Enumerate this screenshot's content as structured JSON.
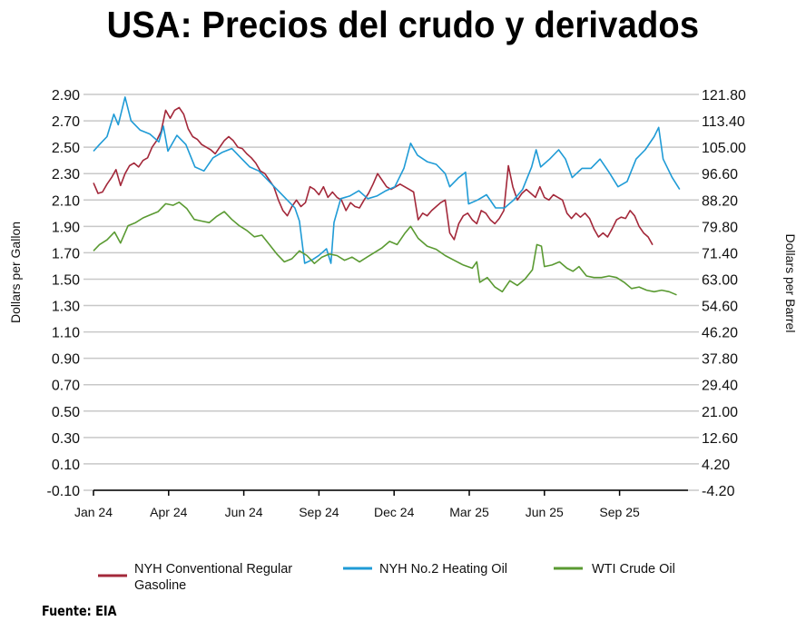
{
  "title": "USA: Precios del crudo y derivados",
  "source": "Fuente: EIA",
  "chart_data": {
    "type": "line",
    "title": "USA: Precios del crudo y derivados",
    "ylabel_left": "Dollars per Gallon",
    "ylabel_right": "Dollars per Barrel",
    "ylim_left": [
      -0.1,
      2.9
    ],
    "ylim_right": [
      -4.2,
      121.8
    ],
    "yticks_left": [
      "2.90",
      "2.70",
      "2.50",
      "2.30",
      "2.10",
      "1.90",
      "1.70",
      "1.50",
      "1.30",
      "1.10",
      "0.90",
      "0.70",
      "0.50",
      "0.30",
      "0.10",
      "-0.10"
    ],
    "yticks_right": [
      "121.80",
      "113.40",
      "105.00",
      "96.60",
      "88.20",
      "79.80",
      "71.40",
      "63.00",
      "54.60",
      "46.20",
      "37.80",
      "29.40",
      "21.00",
      "12.60",
      "4.20",
      "-4.20"
    ],
    "xticks": [
      "Jan 24",
      "Apr 24",
      "Jun 24",
      "Sep 24",
      "Dec 24",
      "Mar 25",
      "Jun 25",
      "Sep 25"
    ],
    "x_unit": "tick index (0 = Jan 24, 7 = Sep 25)",
    "xlim": [
      0,
      7.9
    ],
    "grid": true,
    "legend_position": "bottom",
    "series": [
      {
        "name": "NYH Conventional Regular Gasoline",
        "axis": "left",
        "color": "#a3283a",
        "points": [
          [
            0,
            2.23
          ],
          [
            0.06,
            2.15
          ],
          [
            0.12,
            2.16
          ],
          [
            0.18,
            2.22
          ],
          [
            0.24,
            2.27
          ],
          [
            0.3,
            2.33
          ],
          [
            0.36,
            2.21
          ],
          [
            0.42,
            2.3
          ],
          [
            0.48,
            2.36
          ],
          [
            0.54,
            2.38
          ],
          [
            0.6,
            2.35
          ],
          [
            0.66,
            2.4
          ],
          [
            0.72,
            2.42
          ],
          [
            0.78,
            2.5
          ],
          [
            0.84,
            2.55
          ],
          [
            0.9,
            2.62
          ],
          [
            0.96,
            2.78
          ],
          [
            1.02,
            2.72
          ],
          [
            1.08,
            2.78
          ],
          [
            1.14,
            2.8
          ],
          [
            1.2,
            2.75
          ],
          [
            1.26,
            2.64
          ],
          [
            1.32,
            2.58
          ],
          [
            1.38,
            2.56
          ],
          [
            1.44,
            2.52
          ],
          [
            1.5,
            2.5
          ],
          [
            1.56,
            2.48
          ],
          [
            1.62,
            2.45
          ],
          [
            1.68,
            2.5
          ],
          [
            1.74,
            2.55
          ],
          [
            1.8,
            2.58
          ],
          [
            1.86,
            2.55
          ],
          [
            1.92,
            2.5
          ],
          [
            1.98,
            2.49
          ],
          [
            2.04,
            2.45
          ],
          [
            2.1,
            2.42
          ],
          [
            2.16,
            2.38
          ],
          [
            2.22,
            2.32
          ],
          [
            2.28,
            2.3
          ],
          [
            2.34,
            2.25
          ],
          [
            2.4,
            2.2
          ],
          [
            2.46,
            2.1
          ],
          [
            2.52,
            2.02
          ],
          [
            2.58,
            1.98
          ],
          [
            2.64,
            2.05
          ],
          [
            2.7,
            2.1
          ],
          [
            2.76,
            2.05
          ],
          [
            2.82,
            2.08
          ],
          [
            2.88,
            2.2
          ],
          [
            2.94,
            2.18
          ],
          [
            3.0,
            2.14
          ],
          [
            3.06,
            2.2
          ],
          [
            3.12,
            2.12
          ],
          [
            3.18,
            2.16
          ],
          [
            3.24,
            2.12
          ],
          [
            3.3,
            2.1
          ],
          [
            3.36,
            2.02
          ],
          [
            3.42,
            2.08
          ],
          [
            3.48,
            2.05
          ],
          [
            3.54,
            2.04
          ],
          [
            3.6,
            2.1
          ],
          [
            3.66,
            2.15
          ],
          [
            3.72,
            2.22
          ],
          [
            3.78,
            2.3
          ],
          [
            3.84,
            2.25
          ],
          [
            3.9,
            2.2
          ],
          [
            3.96,
            2.18
          ],
          [
            4.02,
            2.2
          ],
          [
            4.08,
            2.22
          ],
          [
            4.14,
            2.2
          ],
          [
            4.2,
            2.18
          ],
          [
            4.26,
            2.16
          ],
          [
            4.32,
            1.95
          ],
          [
            4.38,
            2.0
          ],
          [
            4.44,
            1.98
          ],
          [
            4.5,
            2.02
          ],
          [
            4.56,
            2.05
          ],
          [
            4.62,
            2.08
          ],
          [
            4.68,
            2.1
          ],
          [
            4.74,
            1.85
          ],
          [
            4.8,
            1.8
          ],
          [
            4.86,
            1.92
          ],
          [
            4.92,
            1.98
          ],
          [
            4.98,
            2.0
          ],
          [
            5.04,
            1.95
          ],
          [
            5.1,
            1.92
          ],
          [
            5.16,
            2.02
          ],
          [
            5.22,
            2.0
          ],
          [
            5.28,
            1.95
          ],
          [
            5.34,
            1.92
          ],
          [
            5.4,
            1.96
          ],
          [
            5.46,
            2.02
          ],
          [
            5.52,
            2.36
          ],
          [
            5.58,
            2.2
          ],
          [
            5.64,
            2.1
          ],
          [
            5.7,
            2.15
          ],
          [
            5.76,
            2.18
          ],
          [
            5.82,
            2.15
          ],
          [
            5.88,
            2.12
          ],
          [
            5.94,
            2.2
          ],
          [
            6.0,
            2.12
          ],
          [
            6.06,
            2.1
          ],
          [
            6.12,
            2.14
          ],
          [
            6.18,
            2.12
          ],
          [
            6.24,
            2.1
          ],
          [
            6.3,
            2.0
          ],
          [
            6.36,
            1.96
          ],
          [
            6.42,
            2.0
          ],
          [
            6.48,
            1.97
          ],
          [
            6.54,
            2.0
          ],
          [
            6.6,
            1.96
          ],
          [
            6.66,
            1.88
          ],
          [
            6.72,
            1.82
          ],
          [
            6.78,
            1.85
          ],
          [
            6.84,
            1.82
          ],
          [
            6.9,
            1.88
          ],
          [
            6.96,
            1.95
          ],
          [
            7.02,
            1.97
          ],
          [
            7.08,
            1.96
          ],
          [
            7.14,
            2.02
          ],
          [
            7.2,
            1.98
          ],
          [
            7.26,
            1.9
          ],
          [
            7.32,
            1.85
          ],
          [
            7.38,
            1.82
          ],
          [
            7.44,
            1.76
          ]
        ]
      },
      {
        "name": "NYH No.2 Heating Oil",
        "axis": "left",
        "color": "#1f9bd6",
        "points": [
          [
            0,
            2.47
          ],
          [
            0.08,
            2.52
          ],
          [
            0.18,
            2.58
          ],
          [
            0.27,
            2.75
          ],
          [
            0.33,
            2.67
          ],
          [
            0.42,
            2.88
          ],
          [
            0.5,
            2.7
          ],
          [
            0.62,
            2.63
          ],
          [
            0.75,
            2.6
          ],
          [
            0.87,
            2.54
          ],
          [
            0.93,
            2.66
          ],
          [
            0.99,
            2.47
          ],
          [
            1.11,
            2.59
          ],
          [
            1.23,
            2.52
          ],
          [
            1.35,
            2.35
          ],
          [
            1.47,
            2.32
          ],
          [
            1.59,
            2.42
          ],
          [
            1.71,
            2.46
          ],
          [
            1.84,
            2.49
          ],
          [
            1.96,
            2.42
          ],
          [
            2.08,
            2.35
          ],
          [
            2.2,
            2.32
          ],
          [
            2.32,
            2.25
          ],
          [
            2.44,
            2.18
          ],
          [
            2.56,
            2.11
          ],
          [
            2.68,
            2.04
          ],
          [
            2.74,
            1.94
          ],
          [
            2.81,
            1.62
          ],
          [
            2.92,
            1.65
          ],
          [
            3.0,
            1.68
          ],
          [
            3.1,
            1.73
          ],
          [
            3.16,
            1.62
          ],
          [
            3.2,
            1.93
          ],
          [
            3.29,
            2.11
          ],
          [
            3.41,
            2.13
          ],
          [
            3.53,
            2.17
          ],
          [
            3.65,
            2.11
          ],
          [
            3.77,
            2.13
          ],
          [
            3.89,
            2.17
          ],
          [
            4.01,
            2.2
          ],
          [
            4.13,
            2.34
          ],
          [
            4.22,
            2.53
          ],
          [
            4.31,
            2.44
          ],
          [
            4.44,
            2.39
          ],
          [
            4.56,
            2.37
          ],
          [
            4.68,
            2.3
          ],
          [
            4.74,
            2.2
          ],
          [
            4.86,
            2.27
          ],
          [
            4.95,
            2.31
          ],
          [
            4.99,
            2.07
          ],
          [
            5.11,
            2.1
          ],
          [
            5.23,
            2.14
          ],
          [
            5.35,
            2.04
          ],
          [
            5.47,
            2.04
          ],
          [
            5.59,
            2.1
          ],
          [
            5.71,
            2.18
          ],
          [
            5.83,
            2.35
          ],
          [
            5.89,
            2.48
          ],
          [
            5.95,
            2.35
          ],
          [
            6.07,
            2.41
          ],
          [
            6.19,
            2.48
          ],
          [
            6.28,
            2.41
          ],
          [
            6.37,
            2.27
          ],
          [
            6.5,
            2.34
          ],
          [
            6.62,
            2.34
          ],
          [
            6.74,
            2.41
          ],
          [
            6.86,
            2.31
          ],
          [
            6.98,
            2.2
          ],
          [
            7.1,
            2.24
          ],
          [
            7.22,
            2.41
          ],
          [
            7.34,
            2.48
          ],
          [
            7.46,
            2.58
          ],
          [
            7.52,
            2.65
          ],
          [
            7.58,
            2.41
          ],
          [
            7.7,
            2.27
          ],
          [
            7.8,
            2.18
          ]
        ]
      },
      {
        "name": "WTI Crude Oil",
        "axis": "right",
        "color": "#5a9a32",
        "points": [
          [
            0,
            72.0
          ],
          [
            0.08,
            74.0
          ],
          [
            0.18,
            75.5
          ],
          [
            0.28,
            78.0
          ],
          [
            0.36,
            74.5
          ],
          [
            0.46,
            80.0
          ],
          [
            0.56,
            81.0
          ],
          [
            0.66,
            82.5
          ],
          [
            0.76,
            83.5
          ],
          [
            0.86,
            84.5
          ],
          [
            0.96,
            87.0
          ],
          [
            1.06,
            86.5
          ],
          [
            1.14,
            87.5
          ],
          [
            1.24,
            85.5
          ],
          [
            1.34,
            82.0
          ],
          [
            1.44,
            81.5
          ],
          [
            1.54,
            81.0
          ],
          [
            1.64,
            83.0
          ],
          [
            1.74,
            84.5
          ],
          [
            1.84,
            82.0
          ],
          [
            1.94,
            80.0
          ],
          [
            2.04,
            78.5
          ],
          [
            2.14,
            76.5
          ],
          [
            2.24,
            77.0
          ],
          [
            2.34,
            74.0
          ],
          [
            2.44,
            71.0
          ],
          [
            2.54,
            68.5
          ],
          [
            2.64,
            69.5
          ],
          [
            2.74,
            72.0
          ],
          [
            2.84,
            70.5
          ],
          [
            2.94,
            68.0
          ],
          [
            3.04,
            70.0
          ],
          [
            3.14,
            71.0
          ],
          [
            3.24,
            70.5
          ],
          [
            3.34,
            69.0
          ],
          [
            3.44,
            70.0
          ],
          [
            3.54,
            68.5
          ],
          [
            3.64,
            70.0
          ],
          [
            3.74,
            71.5
          ],
          [
            3.84,
            73.0
          ],
          [
            3.94,
            75.0
          ],
          [
            4.04,
            74.0
          ],
          [
            4.14,
            77.5
          ],
          [
            4.22,
            79.8
          ],
          [
            4.32,
            76.0
          ],
          [
            4.44,
            73.5
          ],
          [
            4.56,
            72.5
          ],
          [
            4.68,
            70.5
          ],
          [
            4.8,
            69.0
          ],
          [
            4.92,
            67.5
          ],
          [
            5.04,
            66.5
          ],
          [
            5.1,
            68.5
          ],
          [
            5.14,
            62.0
          ],
          [
            5.24,
            63.5
          ],
          [
            5.34,
            60.5
          ],
          [
            5.44,
            59.0
          ],
          [
            5.54,
            62.5
          ],
          [
            5.64,
            61.0
          ],
          [
            5.74,
            63.0
          ],
          [
            5.84,
            66.0
          ],
          [
            5.9,
            74.0
          ],
          [
            5.96,
            73.5
          ],
          [
            6.0,
            67.0
          ],
          [
            6.1,
            67.5
          ],
          [
            6.2,
            68.5
          ],
          [
            6.3,
            66.5
          ],
          [
            6.38,
            65.5
          ],
          [
            6.46,
            67.0
          ],
          [
            6.56,
            64.0
          ],
          [
            6.66,
            63.5
          ],
          [
            6.76,
            63.5
          ],
          [
            6.86,
            64.0
          ],
          [
            6.96,
            63.5
          ],
          [
            7.06,
            62.0
          ],
          [
            7.16,
            60.0
          ],
          [
            7.26,
            60.5
          ],
          [
            7.36,
            59.5
          ],
          [
            7.46,
            59.0
          ],
          [
            7.56,
            59.5
          ],
          [
            7.66,
            59.0
          ],
          [
            7.76,
            58.0
          ]
        ]
      }
    ]
  }
}
